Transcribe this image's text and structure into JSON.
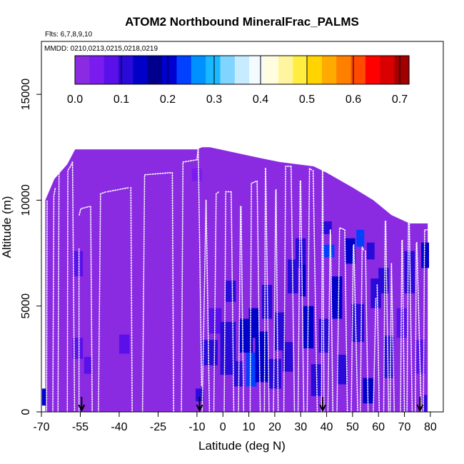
{
  "chart_data": {
    "type": "heatmap",
    "title": "ATOM2 Northbound MineralFrac_PALMS",
    "subtitle_flights": "Flts: 6,7,8,9,10",
    "subtitle_dates": "MMDD: 0210,0213,0215,0218,0219",
    "xlabel": "Latitude (deg N)",
    "ylabel": "Altitude (m)",
    "xlim": [
      -70,
      85
    ],
    "ylim": [
      0,
      17500
    ],
    "x_ticks": [
      -70,
      -55,
      -40,
      -25,
      -10,
      0,
      10,
      20,
      30,
      40,
      50,
      60,
      70,
      80
    ],
    "x_tick_labels": [
      "-70",
      "-55",
      "-40",
      "-25",
      "-10",
      "0",
      "10",
      "20",
      "30",
      "40",
      "50",
      "60",
      "70",
      "80"
    ],
    "y_ticks": [
      0,
      5000,
      10000,
      15000
    ],
    "y_tick_labels": [
      "0",
      "5000",
      "10000",
      "15000"
    ],
    "colorbar": {
      "range": [
        0,
        0.72
      ],
      "ticks": [
        0.0,
        0.1,
        0.2,
        0.3,
        0.4,
        0.5,
        0.6,
        0.7
      ],
      "tick_labels": [
        "0.0",
        "0.1",
        "0.2",
        "0.3",
        "0.4",
        "0.5",
        "0.6",
        "0.7"
      ],
      "colors": [
        "#8a2be2",
        "#7a1cf0",
        "#5a10e8",
        "#2a0ad8",
        "#0000c8",
        "#00008c",
        "#0000d0",
        "#0040ff",
        "#0090ff",
        "#1ab8ff",
        "#80d4ff",
        "#c8ecff",
        "#f4fbff",
        "#fffde0",
        "#fff5a0",
        "#ffee40",
        "#ffd400",
        "#ffaa00",
        "#ff8000",
        "#ff4a00",
        "#ff0000",
        "#d80000",
        "#a00000"
      ]
    },
    "background_value": 0.02,
    "domain_profile": [
      [
        -68.5,
        10000
      ],
      [
        -65,
        11000
      ],
      [
        -60,
        11700
      ],
      [
        -57,
        12400
      ],
      [
        -10,
        12400
      ],
      [
        -8,
        12500
      ],
      [
        -5,
        12500
      ],
      [
        14,
        12000
      ],
      [
        22,
        11800
      ],
      [
        35,
        11600
      ],
      [
        40,
        11300
      ],
      [
        50,
        10600
      ],
      [
        58,
        10000
      ],
      [
        65,
        9300
      ],
      [
        72,
        8900
      ],
      [
        79,
        8900
      ]
    ],
    "enhanced_cells": [
      {
        "lat": -56,
        "alt": 7000,
        "w": 4,
        "h": 1200,
        "v": 0.08
      },
      {
        "lat": -56,
        "alt": 3000,
        "w": 4,
        "h": 1000,
        "v": 0.09
      },
      {
        "lat": -52,
        "alt": 2200,
        "w": 3,
        "h": 800,
        "v": 0.07
      },
      {
        "lat": -38,
        "alt": 3200,
        "w": 4,
        "h": 900,
        "v": 0.07
      },
      {
        "lat": -10,
        "alt": 11200,
        "w": 4,
        "h": 600,
        "v": 0.06
      },
      {
        "lat": -9,
        "alt": 800,
        "w": 3,
        "h": 600,
        "v": 0.1
      },
      {
        "lat": -5,
        "alt": 2800,
        "w": 6,
        "h": 1200,
        "v": 0.11
      },
      {
        "lat": -3,
        "alt": 4300,
        "w": 5,
        "h": 1200,
        "v": 0.09
      },
      {
        "lat": 2,
        "alt": 3000,
        "w": 6,
        "h": 2500,
        "v": 0.12
      },
      {
        "lat": 3,
        "alt": 5700,
        "w": 4,
        "h": 1000,
        "v": 0.1
      },
      {
        "lat": 6,
        "alt": 1800,
        "w": 4,
        "h": 1200,
        "v": 0.11
      },
      {
        "lat": 9,
        "alt": 3600,
        "w": 5,
        "h": 1600,
        "v": 0.13
      },
      {
        "lat": 11,
        "alt": 2000,
        "w": 4,
        "h": 1600,
        "v": 0.22
      },
      {
        "lat": 12,
        "alt": 4200,
        "w": 4,
        "h": 1400,
        "v": 0.15
      },
      {
        "lat": 15,
        "alt": 2600,
        "w": 5,
        "h": 2400,
        "v": 0.13
      },
      {
        "lat": 17,
        "alt": 5200,
        "w": 4,
        "h": 1600,
        "v": 0.11
      },
      {
        "lat": 20,
        "alt": 1800,
        "w": 5,
        "h": 1400,
        "v": 0.1
      },
      {
        "lat": 22,
        "alt": 3800,
        "w": 4,
        "h": 1800,
        "v": 0.12
      },
      {
        "lat": 25,
        "alt": 2600,
        "w": 4,
        "h": 1400,
        "v": 0.11
      },
      {
        "lat": 27,
        "alt": 6400,
        "w": 4,
        "h": 1600,
        "v": 0.12
      },
      {
        "lat": 30,
        "alt": 7500,
        "w": 4,
        "h": 1400,
        "v": 0.1
      },
      {
        "lat": 31,
        "alt": 6200,
        "w": 2,
        "h": 1500,
        "v": 0.21
      },
      {
        "lat": 33,
        "alt": 4000,
        "w": 4,
        "h": 2000,
        "v": 0.13
      },
      {
        "lat": 36,
        "alt": 1500,
        "w": 4,
        "h": 1500,
        "v": 0.1
      },
      {
        "lat": 39,
        "alt": 3600,
        "w": 4,
        "h": 1600,
        "v": 0.12
      },
      {
        "lat": 40,
        "alt": 8700,
        "w": 4,
        "h": 600,
        "v": 0.11
      },
      {
        "lat": 41,
        "alt": 7600,
        "w": 4,
        "h": 600,
        "v": 0.24
      },
      {
        "lat": 44,
        "alt": 5400,
        "w": 4,
        "h": 2000,
        "v": 0.14
      },
      {
        "lat": 46,
        "alt": 2000,
        "w": 4,
        "h": 1400,
        "v": 0.11
      },
      {
        "lat": 49,
        "alt": 7600,
        "w": 4,
        "h": 1200,
        "v": 0.13
      },
      {
        "lat": 52,
        "alt": 4200,
        "w": 5,
        "h": 1800,
        "v": 0.12
      },
      {
        "lat": 53,
        "alt": 8200,
        "w": 3,
        "h": 800,
        "v": 0.24
      },
      {
        "lat": 56,
        "alt": 1000,
        "w": 4,
        "h": 1200,
        "v": 0.13
      },
      {
        "lat": 57,
        "alt": 7600,
        "w": 3,
        "h": 800,
        "v": 0.11
      },
      {
        "lat": 59,
        "alt": 5600,
        "w": 4,
        "h": 1400,
        "v": 0.1
      },
      {
        "lat": 62,
        "alt": 6200,
        "w": 4,
        "h": 1200,
        "v": 0.12
      },
      {
        "lat": 64,
        "alt": 2600,
        "w": 4,
        "h": 2000,
        "v": 0.11
      },
      {
        "lat": 69,
        "alt": 4200,
        "w": 4,
        "h": 1400,
        "v": 0.09
      },
      {
        "lat": 72,
        "alt": 6600,
        "w": 4,
        "h": 2000,
        "v": 0.1
      },
      {
        "lat": 76,
        "alt": 2600,
        "w": 4,
        "h": 1600,
        "v": 0.09
      },
      {
        "lat": 78,
        "alt": 7400,
        "w": 3,
        "h": 1200,
        "v": 0.13
      },
      {
        "lat": -69,
        "alt": 700,
        "w": 1.5,
        "h": 800,
        "v": 0.2
      },
      {
        "lat": 78,
        "alt": 400,
        "w": 1.5,
        "h": 800,
        "v": 0.12
      }
    ],
    "flight_tracks": [
      [
        [
          -68,
          0
        ],
        [
          -67.8,
          10000
        ]
      ],
      [
        [
          -65.6,
          0
        ],
        [
          -65.2,
          10200
        ],
        [
          -64.6,
          10600
        ]
      ],
      [
        [
          -63.6,
          0
        ],
        [
          -63.2,
          11300
        ]
      ],
      [
        [
          -60,
          0
        ],
        [
          -59.8,
          11400
        ],
        [
          -58.8,
          11600
        ],
        [
          -58,
          11800
        ]
      ],
      [
        [
          -58,
          11800
        ],
        [
          -57.2,
          0
        ]
      ],
      [
        [
          -55.5,
          0
        ],
        [
          -55.5,
          7700
        ]
      ],
      [
        [
          -55.4,
          9300
        ],
        [
          -54.8,
          9600
        ],
        [
          -51.5,
          9700
        ]
      ],
      [
        [
          -51,
          9700
        ],
        [
          -50.4,
          0
        ]
      ],
      [
        [
          -48,
          0
        ],
        [
          -47.2,
          10300
        ],
        [
          -45,
          10400
        ]
      ],
      [
        [
          -44.5,
          10400
        ],
        [
          -36,
          10600
        ]
      ],
      [
        [
          -35.5,
          10600
        ],
        [
          -35,
          0
        ]
      ],
      [
        [
          -31,
          0
        ],
        [
          -30.2,
          11200
        ],
        [
          -20,
          11300
        ]
      ],
      [
        [
          -19.5,
          11300
        ],
        [
          -19,
          0
        ]
      ],
      [
        [
          -16,
          0
        ],
        [
          -15.4,
          11800
        ],
        [
          -10.5,
          11900
        ]
      ],
      [
        [
          -10,
          11900
        ],
        [
          -9.6,
          12400
        ]
      ],
      [
        [
          -9.5,
          12400
        ],
        [
          -8.2,
          1200
        ]
      ],
      [
        [
          -8,
          0
        ],
        [
          -6.5,
          10000
        ]
      ],
      [
        [
          -6.5,
          10000
        ],
        [
          -5.2,
          0
        ]
      ],
      [
        [
          -3.5,
          0
        ],
        [
          -2.6,
          10300
        ],
        [
          -1.5,
          10400
        ]
      ],
      [
        [
          0.5,
          0
        ],
        [
          1.1,
          10400
        ],
        [
          3,
          10400
        ]
      ],
      [
        [
          3.2,
          10400
        ],
        [
          4.2,
          0
        ]
      ],
      [
        [
          6,
          0
        ],
        [
          6.8,
          9700
        ]
      ],
      [
        [
          7,
          9700
        ],
        [
          8,
          0
        ]
      ],
      [
        [
          10.5,
          0
        ],
        [
          11,
          10800
        ],
        [
          13,
          10900
        ]
      ],
      [
        [
          13.2,
          10900
        ],
        [
          14.4,
          0
        ]
      ],
      [
        [
          16,
          0
        ],
        [
          16.4,
          11500
        ]
      ],
      [
        [
          16.5,
          11500
        ],
        [
          17.8,
          0
        ]
      ],
      [
        [
          19.5,
          0
        ],
        [
          20.4,
          10500
        ]
      ],
      [
        [
          20.5,
          10500
        ],
        [
          21.3,
          0
        ]
      ],
      [
        [
          23.5,
          0
        ],
        [
          24.2,
          11600
        ],
        [
          26,
          11600
        ]
      ],
      [
        [
          26.3,
          11600
        ],
        [
          27.6,
          0
        ]
      ],
      [
        [
          29,
          0
        ],
        [
          29.8,
          10900
        ]
      ],
      [
        [
          30,
          10900
        ],
        [
          31.2,
          0
        ]
      ],
      [
        [
          32.5,
          0
        ],
        [
          33.4,
          11500
        ],
        [
          34.6,
          11400
        ]
      ],
      [
        [
          34.8,
          11400
        ],
        [
          36.4,
          0
        ]
      ],
      [
        [
          38,
          0
        ],
        [
          38.4,
          11600
        ]
      ],
      [
        [
          38.5,
          11600
        ],
        [
          39,
          0
        ]
      ],
      [
        [
          40.5,
          0
        ],
        [
          41.4,
          8600
        ]
      ],
      [
        [
          41.5,
          8600
        ],
        [
          42.4,
          0
        ]
      ],
      [
        [
          44,
          0
        ],
        [
          45,
          8700
        ],
        [
          47,
          8600
        ]
      ],
      [
        [
          47,
          8600
        ],
        [
          48,
          0
        ]
      ],
      [
        [
          49.5,
          0
        ],
        [
          50.3,
          7900
        ]
      ],
      [
        [
          50.5,
          7900
        ],
        [
          52,
          0
        ]
      ],
      [
        [
          53,
          0
        ],
        [
          53.7,
          7800
        ],
        [
          54.4,
          7600
        ]
      ],
      [
        [
          55,
          7600
        ],
        [
          56,
          0
        ]
      ],
      [
        [
          58,
          0
        ],
        [
          59,
          5400
        ]
      ],
      [
        [
          59.5,
          6000
        ],
        [
          60.3,
          0
        ]
      ],
      [
        [
          62,
          0
        ],
        [
          62.6,
          9000
        ]
      ],
      [
        [
          62.8,
          9000
        ],
        [
          63.9,
          0
        ]
      ],
      [
        [
          64.5,
          0
        ],
        [
          65,
          7000
        ]
      ],
      [
        [
          65,
          7000
        ],
        [
          66.1,
          0
        ]
      ],
      [
        [
          68.5,
          0
        ],
        [
          69,
          8100
        ]
      ],
      [
        [
          69.2,
          8100
        ],
        [
          70,
          0
        ]
      ],
      [
        [
          71,
          0
        ],
        [
          71.6,
          9700
        ]
      ],
      [
        [
          71.8,
          9700
        ],
        [
          73,
          0
        ]
      ],
      [
        [
          74.2,
          0
        ],
        [
          74.6,
          8000
        ]
      ],
      [
        [
          74.8,
          8000
        ],
        [
          76.5,
          0
        ]
      ],
      [
        [
          77.3,
          0
        ],
        [
          77.8,
          8600
        ],
        [
          79,
          8600
        ]
      ]
    ],
    "arrows_lat": [
      -54.5,
      -9,
      38.5,
      76
    ]
  }
}
